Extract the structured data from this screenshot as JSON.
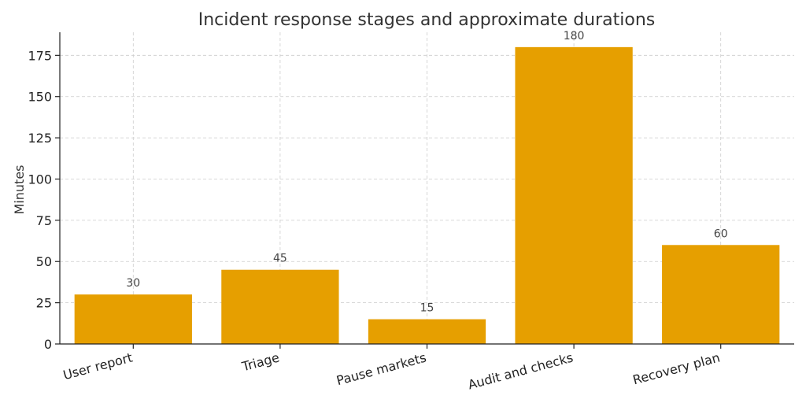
{
  "chart_data": {
    "type": "bar",
    "title": "Incident response stages and approximate durations",
    "xlabel": "",
    "ylabel": "Minutes",
    "categories": [
      "User report",
      "Triage",
      "Pause markets",
      "Audit and checks",
      "Recovery plan"
    ],
    "values": [
      30,
      45,
      15,
      180,
      60
    ],
    "data_labels": [
      "30",
      "45",
      "15",
      "180",
      "60"
    ],
    "ylim": [
      0,
      189
    ],
    "yticks": [
      0,
      25,
      50,
      75,
      100,
      125,
      150,
      175
    ],
    "grid": true,
    "bar_color": "#E69F00",
    "legend": "none"
  }
}
